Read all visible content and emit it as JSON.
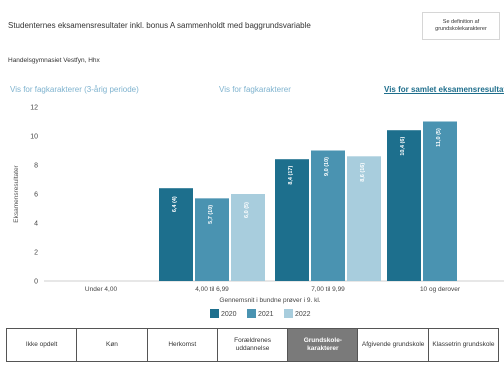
{
  "header": {
    "title": "Studenternes eksamensresultater inkl. bonus A  sammenholdt med baggrundsvariable",
    "info_button": "Se definition af grundskolekarakterer",
    "school": "Handelsgymnasiet Vestfyn, Hhx"
  },
  "links": [
    {
      "label": "Vis for fagkarakterer (3-årig periode)",
      "active": false
    },
    {
      "label": "Vis for fagkarakterer",
      "active": false
    },
    {
      "label": "Vis for samlet eksamensresultat",
      "active": true
    }
  ],
  "chart_data": {
    "type": "bar",
    "categories": [
      "Under 4,00",
      "4,00 til 6,99",
      "7,00 til 9,99",
      "10 og derover"
    ],
    "series": [
      {
        "name": "2020",
        "color": "#1d6f8d",
        "values": [
          null,
          6.4,
          8.4,
          10.4
        ],
        "labels": [
          "",
          "6,4 (4)",
          "8,4 (17)",
          "10,4 (6)"
        ]
      },
      {
        "name": "2021",
        "color": "#4a93b1",
        "values": [
          null,
          5.7,
          9.0,
          11.0
        ],
        "labels": [
          "",
          "5,7 (10)",
          "9,0 (10)",
          "11,0 (5)"
        ]
      },
      {
        "name": "2022",
        "color": "#a8cddd",
        "values": [
          null,
          6.0,
          8.6,
          null
        ],
        "labels": [
          "",
          "6,0 (5)",
          "8,6 (16)",
          ""
        ]
      }
    ],
    "ylim": [
      0,
      12
    ],
    "yticks": [
      0,
      2,
      4,
      6,
      8,
      10,
      12
    ],
    "ylabel": "Eksamensresultater",
    "xlabel": "Gennemsnit i bundne prøver i 9. kl.",
    "legend_position": "bottom",
    "grid": false
  },
  "tabs": [
    {
      "label": "Ikke opdelt",
      "active": false
    },
    {
      "label": "Køn",
      "active": false
    },
    {
      "label": "Herkomst",
      "active": false
    },
    {
      "label": "Forældrenes uddannelse",
      "active": false
    },
    {
      "label": "Grundskole-karakterer",
      "active": true
    },
    {
      "label": "Afgivende grundskole",
      "active": false
    },
    {
      "label": "Klassetrin grundskole",
      "active": false
    }
  ]
}
